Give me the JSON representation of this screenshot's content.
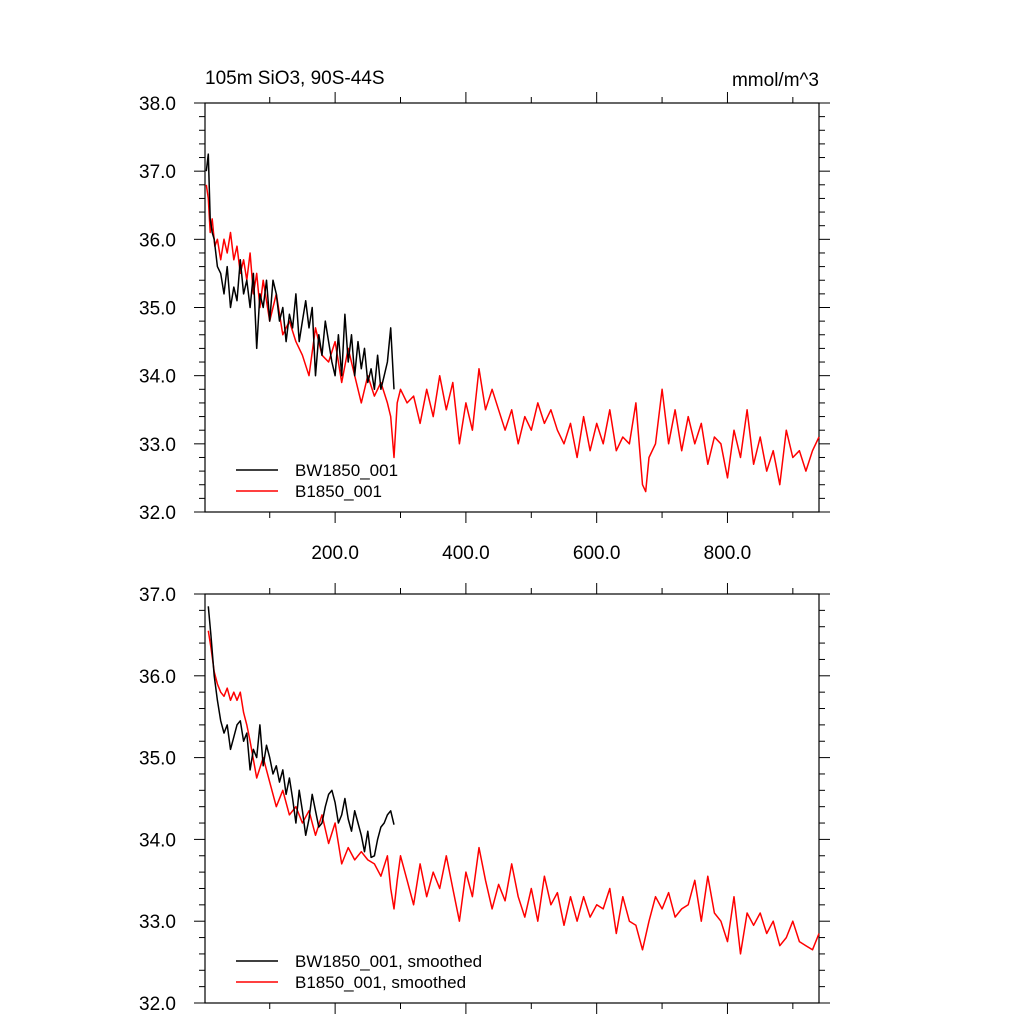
{
  "chart_data": [
    {
      "type": "line",
      "title": "105m SiO3, 90S-44S",
      "units_label": "mmol/m^3",
      "xlabel": "",
      "ylabel": "",
      "xlim": [
        1,
        940
      ],
      "ylim": [
        32.0,
        38.0
      ],
      "x_ticks": [
        200,
        400,
        600,
        800
      ],
      "x_tick_labels": [
        "200.0",
        "400.0",
        "600.0",
        "800.0"
      ],
      "y_ticks": [
        32,
        33,
        34,
        35,
        36,
        37,
        38
      ],
      "y_tick_labels": [
        "32.0",
        "33.0",
        "34.0",
        "35.0",
        "36.0",
        "37.0",
        "38.0"
      ],
      "grid": false,
      "legend_position": "bottom-left",
      "series": [
        {
          "name": "BW1850_001",
          "color": "#000000",
          "x": [
            3,
            6,
            9,
            12,
            15,
            20,
            25,
            30,
            35,
            40,
            45,
            50,
            55,
            60,
            65,
            70,
            75,
            80,
            85,
            90,
            95,
            100,
            105,
            110,
            115,
            120,
            125,
            130,
            135,
            140,
            145,
            150,
            155,
            160,
            165,
            170,
            175,
            180,
            185,
            190,
            195,
            200,
            205,
            210,
            215,
            220,
            225,
            230,
            235,
            240,
            245,
            250,
            255,
            260,
            265,
            270,
            275,
            280,
            285,
            290
          ],
          "values": [
            37.0,
            37.25,
            36.3,
            36.1,
            36.0,
            35.6,
            35.5,
            35.2,
            35.6,
            35.0,
            35.3,
            35.1,
            35.7,
            35.2,
            35.4,
            35.0,
            35.5,
            34.4,
            35.2,
            35.0,
            35.4,
            34.8,
            35.4,
            35.2,
            34.8,
            35.0,
            34.5,
            34.9,
            34.7,
            35.2,
            34.5,
            34.8,
            35.1,
            34.7,
            35.0,
            34.0,
            34.6,
            34.3,
            34.8,
            34.5,
            34.2,
            34.0,
            34.6,
            34.0,
            34.9,
            34.2,
            34.6,
            34.0,
            34.5,
            34.1,
            34.4,
            33.9,
            34.1,
            33.8,
            34.3,
            33.8,
            34.0,
            34.2,
            34.7,
            33.8
          ]
        },
        {
          "name": "B1850_001",
          "color": "#ff0000",
          "x": [
            3,
            6,
            9,
            12,
            16,
            20,
            25,
            30,
            35,
            40,
            45,
            50,
            55,
            60,
            65,
            70,
            75,
            80,
            85,
            90,
            100,
            110,
            120,
            130,
            140,
            150,
            160,
            170,
            180,
            190,
            200,
            210,
            220,
            230,
            240,
            250,
            260,
            270,
            280,
            285,
            290,
            295,
            300,
            310,
            320,
            330,
            340,
            350,
            360,
            370,
            380,
            390,
            400,
            410,
            420,
            430,
            440,
            450,
            460,
            470,
            480,
            490,
            500,
            510,
            520,
            530,
            540,
            550,
            560,
            570,
            580,
            590,
            600,
            610,
            620,
            630,
            640,
            650,
            660,
            670,
            675,
            680,
            690,
            700,
            710,
            720,
            730,
            740,
            750,
            760,
            770,
            780,
            790,
            800,
            810,
            820,
            830,
            840,
            850,
            860,
            870,
            880,
            890,
            900,
            910,
            920,
            930,
            940
          ],
          "values": [
            36.8,
            36.6,
            36.1,
            36.3,
            35.9,
            36.0,
            35.7,
            36.0,
            35.8,
            36.1,
            35.7,
            35.9,
            35.5,
            35.7,
            35.4,
            35.8,
            35.2,
            35.5,
            35.0,
            35.4,
            34.8,
            35.2,
            34.6,
            34.8,
            34.5,
            34.3,
            34.0,
            34.7,
            34.3,
            34.2,
            34.5,
            33.9,
            34.4,
            34.0,
            33.6,
            34.0,
            33.7,
            33.9,
            33.6,
            33.4,
            32.8,
            33.6,
            33.8,
            33.6,
            33.7,
            33.3,
            33.8,
            33.4,
            34.0,
            33.5,
            33.9,
            33.0,
            33.6,
            33.2,
            34.1,
            33.5,
            33.8,
            33.5,
            33.2,
            33.5,
            33.0,
            33.4,
            33.2,
            33.6,
            33.3,
            33.5,
            33.2,
            33.0,
            33.3,
            32.8,
            33.4,
            32.9,
            33.3,
            33.0,
            33.5,
            32.9,
            33.1,
            33.0,
            33.6,
            32.4,
            32.3,
            32.8,
            33.0,
            33.8,
            33.0,
            33.5,
            32.9,
            33.4,
            33.0,
            33.3,
            32.7,
            33.1,
            33.0,
            32.5,
            33.2,
            32.8,
            33.5,
            32.7,
            33.1,
            32.6,
            32.9,
            32.4,
            33.2,
            32.8,
            32.9,
            32.6,
            32.9,
            33.1
          ]
        }
      ]
    },
    {
      "type": "line",
      "title": "",
      "xlabel": "",
      "ylabel": "",
      "xlim": [
        1,
        940
      ],
      "ylim": [
        32.0,
        37.0
      ],
      "x_ticks": [
        200,
        400,
        600,
        800
      ],
      "x_tick_labels": [],
      "y_ticks": [
        32,
        33,
        34,
        35,
        36,
        37
      ],
      "y_tick_labels": [
        "32.0",
        "33.0",
        "34.0",
        "35.0",
        "36.0",
        "37.0"
      ],
      "grid": false,
      "legend_position": "bottom-left",
      "series": [
        {
          "name": "BW1850_001, smoothed",
          "color": "#000000",
          "x": [
            6,
            10,
            15,
            20,
            25,
            30,
            35,
            40,
            45,
            50,
            55,
            60,
            65,
            70,
            75,
            80,
            85,
            90,
            95,
            100,
            105,
            110,
            115,
            120,
            125,
            130,
            135,
            140,
            145,
            150,
            155,
            160,
            165,
            170,
            175,
            180,
            185,
            190,
            195,
            200,
            205,
            210,
            215,
            220,
            225,
            230,
            235,
            240,
            245,
            250,
            255,
            260,
            265,
            270,
            275,
            280,
            285,
            290
          ],
          "values": [
            36.85,
            36.5,
            36.0,
            35.7,
            35.45,
            35.3,
            35.4,
            35.1,
            35.25,
            35.4,
            35.45,
            35.2,
            35.3,
            34.85,
            35.1,
            35.0,
            35.4,
            34.9,
            35.15,
            35.0,
            34.8,
            34.9,
            34.7,
            34.85,
            34.55,
            34.75,
            34.5,
            34.2,
            34.6,
            34.35,
            34.05,
            34.25,
            34.55,
            34.35,
            34.15,
            34.2,
            34.4,
            34.55,
            34.6,
            34.45,
            34.2,
            34.3,
            34.5,
            34.25,
            34.1,
            34.35,
            34.2,
            34.05,
            33.85,
            34.1,
            33.78,
            33.8,
            34.0,
            34.15,
            34.2,
            34.3,
            34.35,
            34.18
          ]
        },
        {
          "name": "B1850_001, smoothed",
          "color": "#ff0000",
          "x": [
            6,
            10,
            15,
            20,
            25,
            30,
            35,
            40,
            45,
            50,
            55,
            60,
            65,
            70,
            80,
            90,
            100,
            110,
            120,
            130,
            140,
            150,
            160,
            170,
            180,
            190,
            200,
            210,
            220,
            230,
            240,
            250,
            260,
            270,
            280,
            285,
            290,
            295,
            300,
            310,
            320,
            330,
            340,
            350,
            360,
            370,
            380,
            390,
            400,
            410,
            420,
            430,
            440,
            450,
            460,
            470,
            480,
            490,
            500,
            510,
            520,
            530,
            540,
            550,
            560,
            570,
            580,
            590,
            600,
            610,
            620,
            630,
            640,
            650,
            660,
            670,
            680,
            690,
            700,
            710,
            720,
            730,
            740,
            750,
            760,
            770,
            780,
            790,
            800,
            810,
            820,
            830,
            840,
            850,
            860,
            870,
            880,
            890,
            900,
            910,
            920,
            930,
            940
          ],
          "values": [
            36.55,
            36.35,
            36.05,
            35.9,
            35.8,
            35.75,
            35.85,
            35.7,
            35.8,
            35.7,
            35.8,
            35.55,
            35.4,
            35.2,
            34.75,
            35.0,
            34.7,
            34.4,
            34.6,
            34.3,
            34.4,
            34.2,
            34.35,
            34.05,
            34.3,
            33.95,
            34.2,
            33.7,
            33.9,
            33.75,
            33.85,
            33.75,
            33.7,
            33.55,
            33.8,
            33.4,
            33.15,
            33.5,
            33.8,
            33.5,
            33.2,
            33.7,
            33.3,
            33.6,
            33.4,
            33.8,
            33.4,
            33.0,
            33.6,
            33.3,
            33.9,
            33.5,
            33.15,
            33.45,
            33.25,
            33.7,
            33.3,
            33.05,
            33.4,
            33.0,
            33.55,
            33.2,
            33.35,
            32.95,
            33.3,
            33.0,
            33.3,
            33.05,
            33.2,
            33.15,
            33.4,
            32.85,
            33.3,
            33.0,
            32.95,
            32.65,
            33.0,
            33.3,
            33.15,
            33.35,
            33.05,
            33.15,
            33.2,
            33.5,
            33.0,
            33.55,
            33.1,
            33.0,
            32.75,
            33.3,
            32.6,
            33.1,
            32.95,
            33.1,
            32.85,
            33.0,
            32.7,
            32.8,
            33.0,
            32.75,
            32.7,
            32.65,
            32.85
          ]
        }
      ]
    }
  ]
}
